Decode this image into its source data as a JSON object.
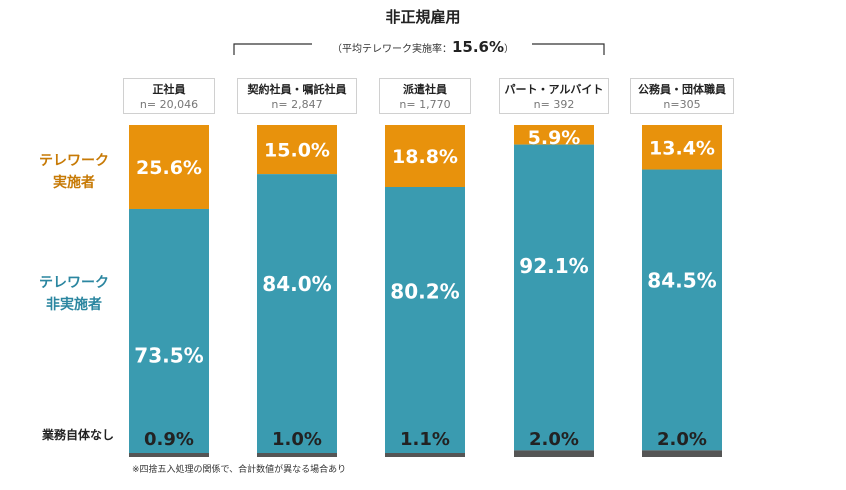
{
  "title": "非正規雇用",
  "subtitle_prefix": "（平均テレワーク実施率：",
  "subtitle_value": "15.6%",
  "subtitle_suffix": "）",
  "row_labels": {
    "telework_yes": "テレワーク\n実施者",
    "telework_no": "テレワーク\n非実施者",
    "no_work": "業務自体なし"
  },
  "note": "※四捨五入処理の関係で、合計数値が異なる場合あり",
  "colors": {
    "telework_yes": "#e8920c",
    "telework_no": "#3a9bb0",
    "no_work": "#555555",
    "yes_label": "#c77a06",
    "no_label": "#2b86a0"
  },
  "groups": [
    {
      "name": "正社員",
      "n": "n= 20,046"
    },
    {
      "name": "契約社員・嘱託社員",
      "n": "n= 2,847"
    },
    {
      "name": "派遣社員",
      "n": "n= 1,770"
    },
    {
      "name": "パート・アルバイト",
      "n": "n= 392"
    },
    {
      "name": "公務員・団体職員",
      "n": "n=305"
    }
  ],
  "chart_data": {
    "type": "bar",
    "stacked": true,
    "percent": true,
    "categories": [
      "正社員",
      "契約社員・嘱託社員",
      "派遣社員",
      "パート・アルバイト",
      "公務員・団体職員"
    ],
    "series": [
      {
        "name": "業務自体なし",
        "values": [
          0.9,
          1.0,
          1.1,
          2.0,
          2.0
        ],
        "labels": [
          "0.9%",
          "1.0%",
          "1.1%",
          "2.0%",
          "2.0%"
        ]
      },
      {
        "name": "テレワーク非実施者",
        "values": [
          73.5,
          84.0,
          80.2,
          92.1,
          84.5
        ],
        "labels": [
          "73.5%",
          "84.0%",
          "80.2%",
          "92.1%",
          "84.5%"
        ]
      },
      {
        "name": "テレワーク実施者",
        "values": [
          25.6,
          15.0,
          18.8,
          5.9,
          13.4
        ],
        "labels": [
          "25.6%",
          "15.0%",
          "18.8%",
          "5.9%",
          "13.4%"
        ]
      }
    ],
    "ylim": [
      0,
      100
    ]
  }
}
